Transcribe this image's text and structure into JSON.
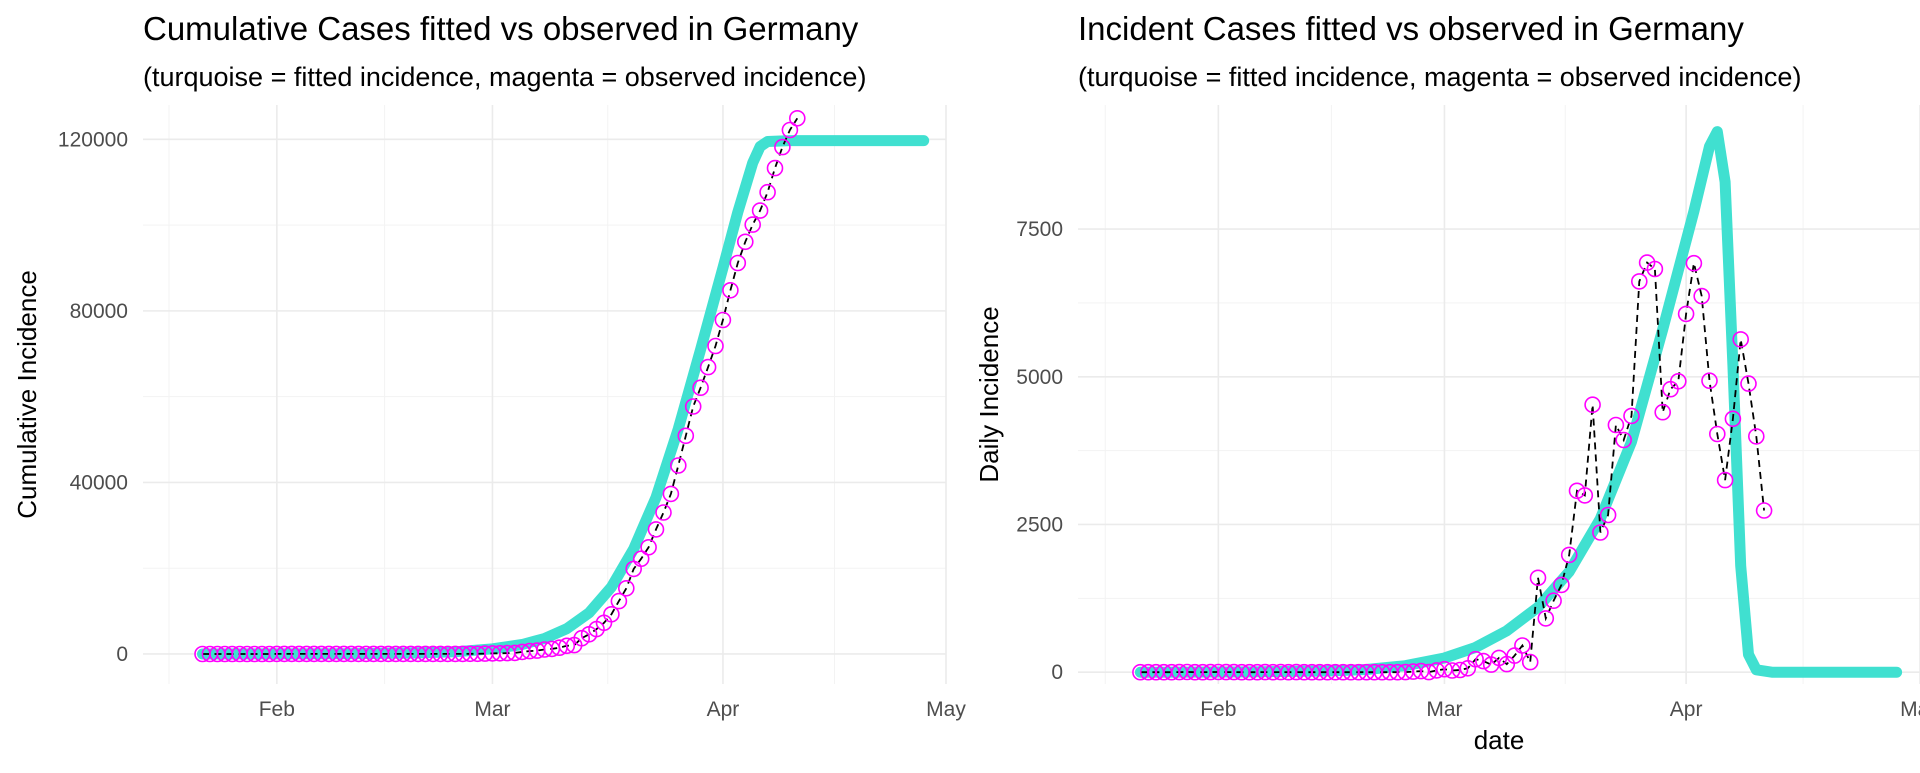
{
  "colors": {
    "fitted": "#40E0D0",
    "observed": "#FF00FF",
    "observed_line": "#000000"
  },
  "chart_data": [
    {
      "type": "line",
      "title": "Cumulative Cases fitted vs observed in Germany",
      "subtitle": "(turquoise = fitted incidence, magenta = observed incidence)",
      "xlabel": "",
      "ylabel": "Cumulative Incidence",
      "xlim": [
        "2020-01-14",
        "2020-05-01"
      ],
      "ylim": [
        -7000,
        128000
      ],
      "x_ticks": [
        "2020-02-01",
        "2020-03-01",
        "2020-04-01",
        "2020-05-01"
      ],
      "x_tick_labels": [
        "Feb",
        "Mar",
        "Apr",
        "May"
      ],
      "y_ticks": [
        0,
        40000,
        80000,
        120000
      ],
      "y_tick_labels": [
        "0",
        "40000",
        "80000",
        "120000"
      ],
      "grid": true,
      "series": [
        {
          "role": "fitted",
          "points": [
            [
              "2020-01-22",
              0
            ],
            [
              "2020-02-01",
              15
            ],
            [
              "2020-02-10",
              60
            ],
            [
              "2020-02-19",
              200
            ],
            [
              "2020-02-25",
              500
            ],
            [
              "2020-03-01",
              1200
            ],
            [
              "2020-03-05",
              2200
            ],
            [
              "2020-03-08",
              3600
            ],
            [
              "2020-03-11",
              5900
            ],
            [
              "2020-03-14",
              9600
            ],
            [
              "2020-03-17",
              15600
            ],
            [
              "2020-03-20",
              24500
            ],
            [
              "2020-03-23",
              36500
            ],
            [
              "2020-03-26",
              52500
            ],
            [
              "2020-03-29",
              71000
            ],
            [
              "2020-04-01",
              90000
            ],
            [
              "2020-04-03",
              103000
            ],
            [
              "2020-04-05",
              114500
            ],
            [
              "2020-04-06",
              118300
            ],
            [
              "2020-04-07",
              119500
            ],
            [
              "2020-04-10",
              119700
            ],
            [
              "2020-04-28",
              119700
            ]
          ]
        },
        {
          "role": "observed",
          "points": [
            [
              "2020-01-22",
              0
            ],
            [
              "2020-01-23",
              0
            ],
            [
              "2020-01-24",
              0
            ],
            [
              "2020-01-25",
              0
            ],
            [
              "2020-01-26",
              0
            ],
            [
              "2020-01-27",
              1
            ],
            [
              "2020-01-28",
              4
            ],
            [
              "2020-01-29",
              4
            ],
            [
              "2020-01-30",
              4
            ],
            [
              "2020-01-31",
              5
            ],
            [
              "2020-02-01",
              8
            ],
            [
              "2020-02-02",
              10
            ],
            [
              "2020-02-03",
              12
            ],
            [
              "2020-02-04",
              12
            ],
            [
              "2020-02-05",
              12
            ],
            [
              "2020-02-06",
              12
            ],
            [
              "2020-02-07",
              13
            ],
            [
              "2020-02-08",
              13
            ],
            [
              "2020-02-09",
              14
            ],
            [
              "2020-02-10",
              14
            ],
            [
              "2020-02-11",
              16
            ],
            [
              "2020-02-12",
              16
            ],
            [
              "2020-02-13",
              16
            ],
            [
              "2020-02-14",
              16
            ],
            [
              "2020-02-15",
              16
            ],
            [
              "2020-02-16",
              16
            ],
            [
              "2020-02-17",
              16
            ],
            [
              "2020-02-18",
              16
            ],
            [
              "2020-02-19",
              16
            ],
            [
              "2020-02-20",
              16
            ],
            [
              "2020-02-21",
              16
            ],
            [
              "2020-02-22",
              16
            ],
            [
              "2020-02-23",
              16
            ],
            [
              "2020-02-24",
              16
            ],
            [
              "2020-02-25",
              17
            ],
            [
              "2020-02-26",
              27
            ],
            [
              "2020-02-27",
              46
            ],
            [
              "2020-02-28",
              48
            ],
            [
              "2020-02-29",
              79
            ],
            [
              "2020-03-01",
              130
            ],
            [
              "2020-03-02",
              159
            ],
            [
              "2020-03-03",
              196
            ],
            [
              "2020-03-04",
              262
            ],
            [
              "2020-03-05",
              482
            ],
            [
              "2020-03-06",
              670
            ],
            [
              "2020-03-07",
              799
            ],
            [
              "2020-03-08",
              1040
            ],
            [
              "2020-03-09",
              1176
            ],
            [
              "2020-03-10",
              1457
            ],
            [
              "2020-03-11",
              1908
            ],
            [
              "2020-03-12",
              2078
            ],
            [
              "2020-03-13",
              3675
            ],
            [
              "2020-03-14",
              4585
            ],
            [
              "2020-03-15",
              5795
            ],
            [
              "2020-03-16",
              7272
            ],
            [
              "2020-03-17",
              9257
            ],
            [
              "2020-03-18",
              12327
            ],
            [
              "2020-03-19",
              15320
            ],
            [
              "2020-03-20",
              19848
            ],
            [
              "2020-03-21",
              22213
            ],
            [
              "2020-03-22",
              24873
            ],
            [
              "2020-03-23",
              29056
            ],
            [
              "2020-03-24",
              32986
            ],
            [
              "2020-03-25",
              37323
            ],
            [
              "2020-03-26",
              43938
            ],
            [
              "2020-03-27",
              50871
            ],
            [
              "2020-03-28",
              57695
            ],
            [
              "2020-03-29",
              62095
            ],
            [
              "2020-03-30",
              66885
            ],
            [
              "2020-03-31",
              71808
            ],
            [
              "2020-04-01",
              77872
            ],
            [
              "2020-04-02",
              84794
            ],
            [
              "2020-04-03",
              91159
            ],
            [
              "2020-04-04",
              96092
            ],
            [
              "2020-04-05",
              100123
            ],
            [
              "2020-04-06",
              103374
            ],
            [
              "2020-04-07",
              107663
            ],
            [
              "2020-04-08",
              113296
            ],
            [
              "2020-04-09",
              118181
            ],
            [
              "2020-04-10",
              122171
            ],
            [
              "2020-04-11",
              124908
            ]
          ]
        }
      ]
    },
    {
      "type": "line",
      "title": "Incident Cases fitted vs observed in Germany",
      "subtitle": "(turquoise = fitted incidence, magenta = observed incidence)",
      "xlabel": "date",
      "ylabel": "Daily Incidence",
      "xlim": [
        "2020-01-14",
        "2020-05-01"
      ],
      "ylim": [
        -200,
        9600
      ],
      "x_ticks": [
        "2020-02-01",
        "2020-03-01",
        "2020-04-01",
        "2020-05-01"
      ],
      "x_tick_labels": [
        "Feb",
        "Mar",
        "Apr",
        "May"
      ],
      "y_ticks": [
        0,
        2500,
        5000,
        7500
      ],
      "y_tick_labels": [
        "0",
        "2500",
        "5000",
        "7500"
      ],
      "grid": true,
      "series": [
        {
          "role": "fitted",
          "points": [
            [
              "2020-01-22",
              0
            ],
            [
              "2020-02-05",
              5
            ],
            [
              "2020-02-15",
              20
            ],
            [
              "2020-02-20",
              45
            ],
            [
              "2020-02-25",
              110
            ],
            [
              "2020-03-01",
              240
            ],
            [
              "2020-03-05",
              420
            ],
            [
              "2020-03-09",
              700
            ],
            [
              "2020-03-13",
              1100
            ],
            [
              "2020-03-17",
              1700
            ],
            [
              "2020-03-21",
              2600
            ],
            [
              "2020-03-25",
              3900
            ],
            [
              "2020-03-29",
              5800
            ],
            [
              "2020-04-02",
              7800
            ],
            [
              "2020-04-04",
              8900
            ],
            [
              "2020-04-05",
              9150
            ],
            [
              "2020-04-06",
              8300
            ],
            [
              "2020-04-07",
              5200
            ],
            [
              "2020-04-08",
              1800
            ],
            [
              "2020-04-09",
              300
            ],
            [
              "2020-04-10",
              40
            ],
            [
              "2020-04-12",
              0
            ],
            [
              "2020-04-28",
              0
            ]
          ]
        },
        {
          "role": "observed",
          "points": [
            [
              "2020-01-22",
              0
            ],
            [
              "2020-01-23",
              0
            ],
            [
              "2020-01-24",
              0
            ],
            [
              "2020-01-25",
              0
            ],
            [
              "2020-01-26",
              0
            ],
            [
              "2020-01-27",
              1
            ],
            [
              "2020-01-28",
              3
            ],
            [
              "2020-01-29",
              0
            ],
            [
              "2020-01-30",
              0
            ],
            [
              "2020-01-31",
              1
            ],
            [
              "2020-02-01",
              3
            ],
            [
              "2020-02-02",
              2
            ],
            [
              "2020-02-03",
              2
            ],
            [
              "2020-02-04",
              0
            ],
            [
              "2020-02-05",
              0
            ],
            [
              "2020-02-06",
              0
            ],
            [
              "2020-02-07",
              1
            ],
            [
              "2020-02-08",
              0
            ],
            [
              "2020-02-09",
              1
            ],
            [
              "2020-02-10",
              0
            ],
            [
              "2020-02-11",
              2
            ],
            [
              "2020-02-12",
              0
            ],
            [
              "2020-02-13",
              0
            ],
            [
              "2020-02-14",
              0
            ],
            [
              "2020-02-15",
              0
            ],
            [
              "2020-02-16",
              0
            ],
            [
              "2020-02-17",
              0
            ],
            [
              "2020-02-18",
              0
            ],
            [
              "2020-02-19",
              0
            ],
            [
              "2020-02-20",
              0
            ],
            [
              "2020-02-21",
              0
            ],
            [
              "2020-02-22",
              0
            ],
            [
              "2020-02-23",
              0
            ],
            [
              "2020-02-24",
              0
            ],
            [
              "2020-02-25",
              1
            ],
            [
              "2020-02-26",
              10
            ],
            [
              "2020-02-27",
              19
            ],
            [
              "2020-02-28",
              2
            ],
            [
              "2020-02-29",
              31
            ],
            [
              "2020-03-01",
              51
            ],
            [
              "2020-03-02",
              29
            ],
            [
              "2020-03-03",
              37
            ],
            [
              "2020-03-04",
              66
            ],
            [
              "2020-03-05",
              220
            ],
            [
              "2020-03-06",
              188
            ],
            [
              "2020-03-07",
              129
            ],
            [
              "2020-03-08",
              241
            ],
            [
              "2020-03-09",
              136
            ],
            [
              "2020-03-10",
              281
            ],
            [
              "2020-03-11",
              451
            ],
            [
              "2020-03-12",
              170
            ],
            [
              "2020-03-13",
              1597
            ],
            [
              "2020-03-14",
              910
            ],
            [
              "2020-03-15",
              1210
            ],
            [
              "2020-03-16",
              1477
            ],
            [
              "2020-03-17",
              1985
            ],
            [
              "2020-03-18",
              3070
            ],
            [
              "2020-03-19",
              2993
            ],
            [
              "2020-03-20",
              4528
            ],
            [
              "2020-03-21",
              2365
            ],
            [
              "2020-03-22",
              2660
            ],
            [
              "2020-03-23",
              4183
            ],
            [
              "2020-03-24",
              3930
            ],
            [
              "2020-03-25",
              4337
            ],
            [
              "2020-03-26",
              6615
            ],
            [
              "2020-03-27",
              6933
            ],
            [
              "2020-03-28",
              6824
            ],
            [
              "2020-03-29",
              4400
            ],
            [
              "2020-03-30",
              4790
            ],
            [
              "2020-03-31",
              4923
            ],
            [
              "2020-04-01",
              6064
            ],
            [
              "2020-04-02",
              6922
            ],
            [
              "2020-04-03",
              6365
            ],
            [
              "2020-04-04",
              4933
            ],
            [
              "2020-04-05",
              4031
            ],
            [
              "2020-04-06",
              3251
            ],
            [
              "2020-04-07",
              4289
            ],
            [
              "2020-04-08",
              5633
            ],
            [
              "2020-04-09",
              4885
            ],
            [
              "2020-04-10",
              3990
            ],
            [
              "2020-04-11",
              2737
            ]
          ]
        }
      ]
    }
  ]
}
